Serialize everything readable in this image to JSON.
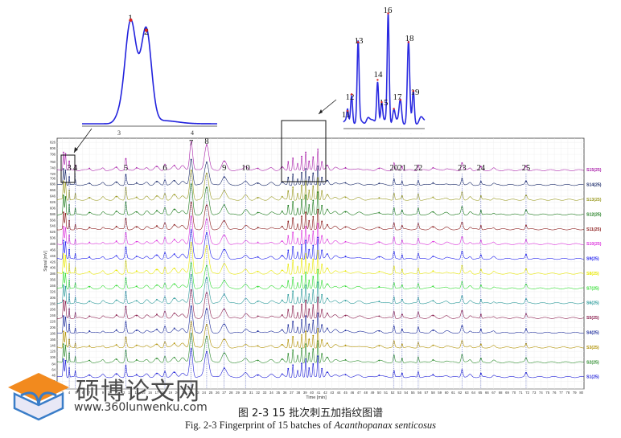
{
  "caption_cn": "图 2-3 15 批次刺五加指纹图谱",
  "caption_en_prefix": "Fig. 2-3 Fingerprint of 15 batches of ",
  "caption_en_species": "Acanthopanax senticosus",
  "watermark": {
    "text_cn": "硕博论文网",
    "url": "www.360lunwenku.com"
  },
  "chart_data": {
    "type": "line",
    "xlabel": "Time [min]",
    "ylabel": "Signal [mV]",
    "xlim": [
      0,
      80
    ],
    "ylim": [
      0,
      840
    ],
    "x_ticks": [
      3,
      4,
      5,
      6,
      7,
      8,
      9,
      10,
      11,
      12,
      13,
      14,
      15,
      16,
      17,
      18,
      19,
      20,
      21,
      22,
      23,
      24,
      25,
      26,
      27,
      28,
      29,
      30,
      31,
      32,
      33,
      34,
      35,
      36,
      37,
      38,
      39,
      40,
      41,
      42,
      43,
      44,
      45,
      46,
      47,
      48,
      49,
      50,
      51,
      52,
      53,
      54,
      55,
      56,
      57,
      58,
      59,
      60,
      61,
      62,
      63,
      64,
      65,
      66,
      67,
      68,
      69,
      70,
      71,
      72,
      73,
      74,
      75,
      76,
      77,
      78,
      79,
      80
    ],
    "y_ticks": [
      0,
      26,
      46,
      64,
      84,
      106,
      126,
      146,
      166,
      186,
      206,
      226,
      246,
      266,
      286,
      306,
      326,
      346,
      366,
      386,
      406,
      426,
      446,
      466,
      486,
      506,
      526,
      546,
      566,
      586,
      606,
      626,
      646,
      666,
      686,
      706,
      720,
      740,
      760,
      786,
      806,
      826
    ],
    "series": [
      {
        "name": "S1(25)",
        "color": "#1f1fd8"
      },
      {
        "name": "S2(25)",
        "color": "#2a8a2a"
      },
      {
        "name": "S3(25)",
        "color": "#b09000"
      },
      {
        "name": "S4(25)",
        "color": "#1a2a9a"
      },
      {
        "name": "S5(25)",
        "color": "#8a1e4e"
      },
      {
        "name": "S6(25)",
        "color": "#2a9a9a"
      },
      {
        "name": "S7(25)",
        "color": "#33dd33"
      },
      {
        "name": "S8(25)",
        "color": "#e8e800"
      },
      {
        "name": "S9(25)",
        "color": "#2222ee"
      },
      {
        "name": "S10(25)",
        "color": "#dd33dd"
      },
      {
        "name": "S11(25)",
        "color": "#8a1a1a"
      },
      {
        "name": "S12(25)",
        "color": "#1a7a1a"
      },
      {
        "name": "S13(25)",
        "color": "#9a9a22"
      },
      {
        "name": "S14(25)",
        "color": "#1a2a6a"
      },
      {
        "name": "S15(25)",
        "color": "#aa22aa"
      }
    ],
    "peaks": [
      {
        "label": "1",
        "t": 3.15
      },
      {
        "label": "2",
        "t": 3.45
      },
      {
        "label": "3",
        "t": 4.0
      },
      {
        "label": "4",
        "t": 4.9
      },
      {
        "label": "5",
        "t": 12.4
      },
      {
        "label": "6",
        "t": 18.2
      },
      {
        "label": "7",
        "t": 22.1
      },
      {
        "label": "8",
        "t": 24.4
      },
      {
        "label": "9",
        "t": 27.0
      },
      {
        "label": "10",
        "t": 30.2
      },
      {
        "label": "20",
        "t": 52.2
      },
      {
        "label": "21",
        "t": 53.4
      },
      {
        "label": "22",
        "t": 55.8
      },
      {
        "label": "23",
        "t": 62.3
      },
      {
        "label": "24",
        "t": 65.1
      },
      {
        "label": "25",
        "t": 71.8
      }
    ],
    "inset_right_peaks": [
      "11",
      "12",
      "13",
      "14",
      "15",
      "16",
      "17",
      "18",
      "19"
    ],
    "inset_left_ticks": [
      "3",
      "4"
    ]
  }
}
